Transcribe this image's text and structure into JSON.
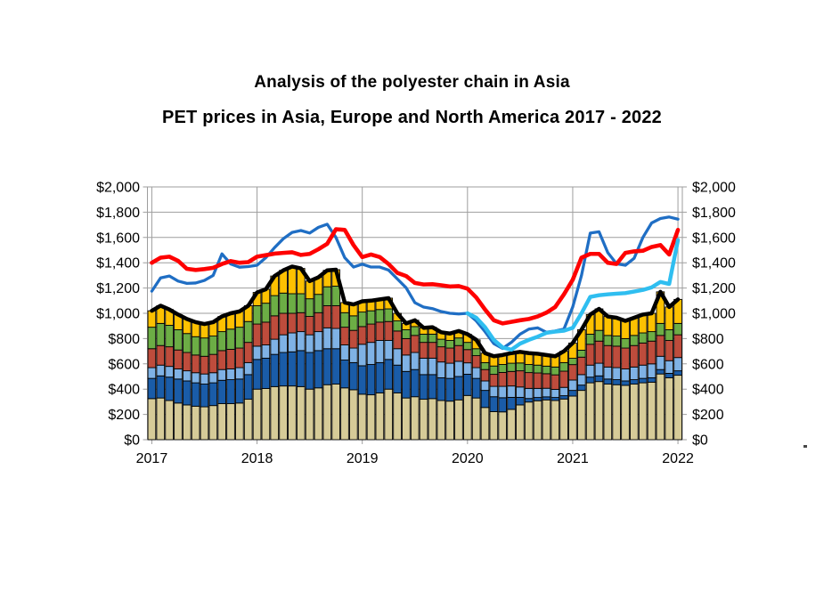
{
  "titles": {
    "line1": "Analysis of the polyester chain in Asia",
    "line2": "PET prices in Asia, Europe and North America 2017 - 2022"
  },
  "chart_data": {
    "type": "combo-stacked-bar-line",
    "x": {
      "unit": "month",
      "start": "2017-01",
      "end": "2022-01",
      "count": 61,
      "year_tick_labels": [
        "2017",
        "2018",
        "2019",
        "2020",
        "2021",
        "2022"
      ]
    },
    "y": {
      "min": 0,
      "max": 2000,
      "tick_step": 200,
      "tick_labels": [
        "$0",
        "$200",
        "$400",
        "$600",
        "$800",
        "$1,000",
        "$1,200",
        "$1,400",
        "$1,600",
        "$1,800",
        "$2,000"
      ],
      "labels_on_both_sides": true
    },
    "grid": true,
    "legend": "none",
    "colors": {
      "grid": "#9E9E9E",
      "bar_outline": "#000000"
    },
    "stacked_bar_series": [
      {
        "name": "stack-tan",
        "color": "#D6CB98",
        "values": [
          325,
          330,
          310,
          290,
          275,
          265,
          260,
          270,
          285,
          285,
          290,
          320,
          400,
          405,
          420,
          425,
          425,
          420,
          400,
          410,
          435,
          440,
          410,
          395,
          360,
          355,
          370,
          400,
          370,
          330,
          340,
          320,
          325,
          310,
          305,
          315,
          350,
          330,
          255,
          222,
          220,
          240,
          275,
          298,
          308,
          315,
          310,
          322,
          345,
          390,
          450,
          460,
          440,
          435,
          430,
          440,
          450,
          455,
          520,
          490,
          510
        ]
      },
      {
        "name": "stack-dark-blue",
        "color": "#1A5CA8",
        "values": [
          160,
          175,
          185,
          190,
          190,
          185,
          180,
          180,
          185,
          190,
          190,
          195,
          235,
          240,
          255,
          265,
          270,
          285,
          290,
          295,
          285,
          280,
          220,
          215,
          225,
          240,
          240,
          235,
          220,
          210,
          215,
          195,
          190,
          180,
          180,
          185,
          168,
          155,
          135,
          118,
          112,
          95,
          60,
          28,
          26,
          24,
          24,
          26,
          45,
          42,
          45,
          45,
          40,
          40,
          35,
          35,
          35,
          35,
          35,
          35,
          35
        ]
      },
      {
        "name": "stack-light-blue",
        "color": "#7FB2E5",
        "values": [
          85,
          85,
          85,
          80,
          80,
          80,
          80,
          80,
          85,
          85,
          90,
          95,
          105,
          105,
          120,
          140,
          150,
          150,
          140,
          150,
          165,
          160,
          120,
          115,
          170,
          175,
          175,
          150,
          130,
          130,
          135,
          130,
          130,
          125,
          120,
          120,
          90,
          85,
          75,
          82,
          90,
          90,
          82,
          80,
          72,
          68,
          64,
          66,
          82,
          83,
          95,
          100,
          95,
          95,
          95,
          100,
          105,
          110,
          105,
          100,
          105
        ]
      },
      {
        "name": "stack-brick-red",
        "color": "#BE4C3C",
        "values": [
          150,
          155,
          155,
          150,
          145,
          140,
          140,
          145,
          150,
          155,
          155,
          160,
          175,
          180,
          185,
          170,
          155,
          150,
          145,
          150,
          175,
          180,
          140,
          140,
          140,
          145,
          145,
          150,
          140,
          130,
          135,
          125,
          125,
          120,
          120,
          125,
          105,
          95,
          90,
          95,
          110,
          115,
          128,
          125,
          122,
          115,
          115,
          128,
          122,
          138,
          165,
          175,
          170,
          170,
          165,
          170,
          175,
          180,
          165,
          160,
          180
        ]
      },
      {
        "name": "stack-green",
        "color": "#6CAD45",
        "values": [
          170,
          175,
          170,
          160,
          150,
          145,
          145,
          145,
          150,
          160,
          165,
          165,
          145,
          150,
          160,
          160,
          155,
          150,
          140,
          145,
          150,
          155,
          115,
          115,
          115,
          105,
          100,
          100,
          80,
          70,
          70,
          65,
          65,
          60,
          60,
          60,
          57,
          55,
          55,
          66,
          63,
          65,
          62,
          64,
          62,
          60,
          62,
          68,
          50,
          55,
          80,
          85,
          80,
          80,
          75,
          80,
          80,
          75,
          95,
          85,
          90
        ]
      },
      {
        "name": "stack-yellow",
        "color": "#FDC101",
        "values": [
          130,
          140,
          125,
          120,
          115,
          115,
          110,
          110,
          120,
          125,
          125,
          125,
          105,
          110,
          155,
          180,
          215,
          200,
          140,
          135,
          130,
          130,
          80,
          90,
          85,
          80,
          80,
          85,
          60,
          50,
          50,
          50,
          55,
          55,
          55,
          55,
          65,
          70,
          75,
          77,
          75,
          80,
          88,
          90,
          90,
          88,
          85,
          90,
          121,
          162,
          155,
          170,
          150,
          145,
          140,
          140,
          145,
          145,
          250,
          180,
          190
        ]
      }
    ],
    "total_line": {
      "name": "line-black-stack-total",
      "color": "#000000",
      "width": 4.5,
      "note": "thick black line tracing the top of the stacked bars"
    },
    "line_series": [
      {
        "name": "line-dark-blue",
        "color": "#1F6EC4",
        "width": 3.3,
        "values": [
          1175,
          1280,
          1295,
          1255,
          1237,
          1240,
          1260,
          1300,
          1470,
          1390,
          1365,
          1370,
          1380,
          1440,
          1520,
          1590,
          1640,
          1655,
          1635,
          1680,
          1705,
          1600,
          1440,
          1366,
          1389,
          1366,
          1366,
          1342,
          1272,
          1202,
          1084,
          1049,
          1037,
          1014,
          1000,
          995,
          1000,
          940,
          855,
          760,
          722,
          770,
          835,
          875,
          885,
          850,
          860,
          875,
          1050,
          1300,
          1635,
          1645,
          1480,
          1392,
          1380,
          1435,
          1600,
          1715,
          1750,
          1762,
          1745
        ]
      },
      {
        "name": "line-red",
        "color": "#FE0000",
        "width": 4.6,
        "values": [
          1400,
          1440,
          1448,
          1415,
          1352,
          1343,
          1350,
          1360,
          1390,
          1413,
          1400,
          1405,
          1448,
          1460,
          1472,
          1478,
          1483,
          1462,
          1470,
          1507,
          1550,
          1665,
          1660,
          1540,
          1445,
          1465,
          1445,
          1390,
          1320,
          1295,
          1240,
          1228,
          1230,
          1222,
          1212,
          1215,
          1195,
          1125,
          1030,
          945,
          920,
          932,
          945,
          955,
          975,
          1005,
          1050,
          1150,
          1265,
          1440,
          1470,
          1470,
          1400,
          1390,
          1478,
          1490,
          1495,
          1525,
          1540,
          1465,
          1660
        ]
      },
      {
        "name": "line-light-blue",
        "color": "#2FBEF0",
        "width": 4.4,
        "values": [
          null,
          null,
          null,
          null,
          null,
          null,
          null,
          null,
          null,
          null,
          null,
          null,
          null,
          null,
          null,
          null,
          null,
          null,
          null,
          null,
          null,
          null,
          null,
          null,
          null,
          null,
          null,
          null,
          null,
          null,
          null,
          null,
          null,
          null,
          null,
          null,
          1000,
          965,
          890,
          790,
          730,
          712,
          760,
          790,
          815,
          845,
          855,
          862,
          885,
          1000,
          1130,
          1143,
          1150,
          1155,
          1160,
          1172,
          1185,
          1205,
          1248,
          1232,
          1580
        ]
      }
    ]
  }
}
